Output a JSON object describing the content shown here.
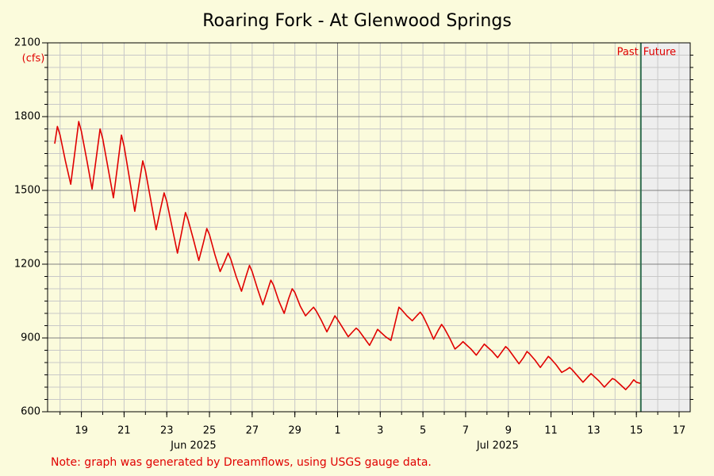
{
  "chart_data": {
    "type": "line",
    "title": "Roaring Fork - At Glenwood Springs",
    "y_unit": "(cfs)",
    "note": "Note: graph was generated by Dreamflows, using USGS gauge data.",
    "past_label": "Past",
    "future_label": "Future",
    "now": "2025-07-15T05:00",
    "xlim": [
      "2025-06-17T10:00",
      "2025-07-17T12:30"
    ],
    "xticks": [
      {
        "value": "2025-06-19T00:00",
        "label": "19"
      },
      {
        "value": "2025-06-21T00:00",
        "label": "21"
      },
      {
        "value": "2025-06-23T00:00",
        "label": "23"
      },
      {
        "value": "2025-06-25T00:00",
        "label": "25"
      },
      {
        "value": "2025-06-27T00:00",
        "label": "27"
      },
      {
        "value": "2025-06-29T00:00",
        "label": "29"
      },
      {
        "value": "2025-07-01T00:00",
        "label": "1"
      },
      {
        "value": "2025-07-03T00:00",
        "label": "3"
      },
      {
        "value": "2025-07-05T00:00",
        "label": "5"
      },
      {
        "value": "2025-07-07T00:00",
        "label": "7"
      },
      {
        "value": "2025-07-09T00:00",
        "label": "9"
      },
      {
        "value": "2025-07-11T00:00",
        "label": "11"
      },
      {
        "value": "2025-07-13T00:00",
        "label": "13"
      },
      {
        "value": "2025-07-15T00:00",
        "label": "15"
      },
      {
        "value": "2025-07-17T00:00",
        "label": "17"
      }
    ],
    "month_labels": [
      {
        "value": "2025-06-24T06:00",
        "label": "Jun 2025"
      },
      {
        "value": "2025-07-08T12:00",
        "label": "Jul 2025"
      }
    ],
    "month_boundaries": [
      "2025-07-01T00:00"
    ],
    "x_minor_grid": "day",
    "ylim": [
      600,
      2100
    ],
    "yticks": [
      600,
      900,
      1200,
      1500,
      1800,
      2100
    ],
    "y_minor_step": 50,
    "grid": true,
    "series": [
      {
        "name": "Flow",
        "color": "#e00000",
        "x": [
          "2025-06-17T18:00",
          "2025-06-17T21:00",
          "2025-06-18T00:00",
          "2025-06-18T06:00",
          "2025-06-18T12:00",
          "2025-06-18T17:00",
          "2025-06-18T21:00",
          "2025-06-19T00:00",
          "2025-06-19T06:00",
          "2025-06-19T12:00",
          "2025-06-19T17:00",
          "2025-06-19T21:00",
          "2025-06-20T00:00",
          "2025-06-20T06:00",
          "2025-06-20T12:00",
          "2025-06-20T17:00",
          "2025-06-20T21:00",
          "2025-06-21T00:00",
          "2025-06-21T06:00",
          "2025-06-21T12:00",
          "2025-06-21T17:00",
          "2025-06-21T21:00",
          "2025-06-22T00:00",
          "2025-06-22T06:00",
          "2025-06-22T12:00",
          "2025-06-22T17:00",
          "2025-06-22T21:00",
          "2025-06-23T00:00",
          "2025-06-23T06:00",
          "2025-06-23T12:00",
          "2025-06-23T17:00",
          "2025-06-23T21:00",
          "2025-06-24T00:00",
          "2025-06-24T06:00",
          "2025-06-24T12:00",
          "2025-06-24T17:00",
          "2025-06-24T21:00",
          "2025-06-25T00:00",
          "2025-06-25T06:00",
          "2025-06-25T12:00",
          "2025-06-25T17:00",
          "2025-06-25T21:00",
          "2025-06-26T00:00",
          "2025-06-26T06:00",
          "2025-06-26T12:00",
          "2025-06-26T17:00",
          "2025-06-26T21:00",
          "2025-06-27T00:00",
          "2025-06-27T06:00",
          "2025-06-27T12:00",
          "2025-06-27T17:00",
          "2025-06-27T21:00",
          "2025-06-28T00:00",
          "2025-06-28T06:00",
          "2025-06-28T12:00",
          "2025-06-28T17:00",
          "2025-06-28T21:00",
          "2025-06-29T00:00",
          "2025-06-29T06:00",
          "2025-06-29T12:00",
          "2025-06-29T17:00",
          "2025-06-29T21:00",
          "2025-06-30T00:00",
          "2025-06-30T06:00",
          "2025-06-30T12:00",
          "2025-06-30T17:00",
          "2025-06-30T21:00",
          "2025-07-01T00:00",
          "2025-07-01T06:00",
          "2025-07-01T12:00",
          "2025-07-01T17:00",
          "2025-07-01T21:00",
          "2025-07-02T00:00",
          "2025-07-02T06:00",
          "2025-07-02T12:00",
          "2025-07-02T17:00",
          "2025-07-02T21:00",
          "2025-07-03T00:00",
          "2025-07-03T06:00",
          "2025-07-03T12:00",
          "2025-07-03T17:00",
          "2025-07-03T21:00",
          "2025-07-04T00:00",
          "2025-07-04T06:00",
          "2025-07-04T12:00",
          "2025-07-04T17:00",
          "2025-07-04T21:00",
          "2025-07-05T00:00",
          "2025-07-05T06:00",
          "2025-07-05T12:00",
          "2025-07-05T17:00",
          "2025-07-05T21:00",
          "2025-07-06T00:00",
          "2025-07-06T06:00",
          "2025-07-06T12:00",
          "2025-07-06T17:00",
          "2025-07-06T21:00",
          "2025-07-07T00:00",
          "2025-07-07T06:00",
          "2025-07-07T12:00",
          "2025-07-07T17:00",
          "2025-07-07T21:00",
          "2025-07-08T00:00",
          "2025-07-08T06:00",
          "2025-07-08T12:00",
          "2025-07-08T17:00",
          "2025-07-08T21:00",
          "2025-07-09T00:00",
          "2025-07-09T06:00",
          "2025-07-09T12:00",
          "2025-07-09T17:00",
          "2025-07-09T21:00",
          "2025-07-10T00:00",
          "2025-07-10T06:00",
          "2025-07-10T12:00",
          "2025-07-10T17:00",
          "2025-07-10T21:00",
          "2025-07-11T00:00",
          "2025-07-11T06:00",
          "2025-07-11T12:00",
          "2025-07-11T17:00",
          "2025-07-11T21:00",
          "2025-07-12T00:00",
          "2025-07-12T06:00",
          "2025-07-12T12:00",
          "2025-07-12T17:00",
          "2025-07-12T21:00",
          "2025-07-13T00:00",
          "2025-07-13T06:00",
          "2025-07-13T12:00",
          "2025-07-13T17:00",
          "2025-07-13T21:00",
          "2025-07-14T00:00",
          "2025-07-14T06:00",
          "2025-07-14T12:00",
          "2025-07-14T17:00",
          "2025-07-14T21:00",
          "2025-07-15T00:00",
          "2025-07-15T05:00"
        ],
        "values": [
          1690,
          1760,
          1725,
          1620,
          1525,
          1665,
          1780,
          1740,
          1625,
          1505,
          1640,
          1750,
          1710,
          1590,
          1470,
          1610,
          1725,
          1680,
          1550,
          1415,
          1530,
          1620,
          1580,
          1460,
          1340,
          1425,
          1490,
          1455,
          1350,
          1245,
          1335,
          1410,
          1380,
          1300,
          1215,
          1285,
          1345,
          1320,
          1240,
          1170,
          1210,
          1245,
          1220,
          1150,
          1090,
          1150,
          1195,
          1170,
          1100,
          1035,
          1090,
          1135,
          1115,
          1050,
          1000,
          1060,
          1100,
          1085,
          1030,
          990,
          1010,
          1025,
          1010,
          970,
          925,
          960,
          990,
          975,
          940,
          905,
          925,
          940,
          930,
          900,
          870,
          905,
          935,
          925,
          905,
          890,
          965,
          1025,
          1015,
          990,
          970,
          990,
          1005,
          990,
          945,
          895,
          930,
          955,
          940,
          900,
          855,
          870,
          885,
          875,
          855,
          830,
          855,
          875,
          865,
          845,
          820,
          845,
          865,
          855,
          825,
          795,
          820,
          845,
          835,
          810,
          780,
          805,
          825,
          815,
          790,
          760,
          770,
          780,
          770,
          745,
          720,
          740,
          755,
          745,
          725,
          700,
          720,
          735,
          730,
          710,
          690,
          710,
          730,
          720,
          715
        ]
      }
    ]
  }
}
